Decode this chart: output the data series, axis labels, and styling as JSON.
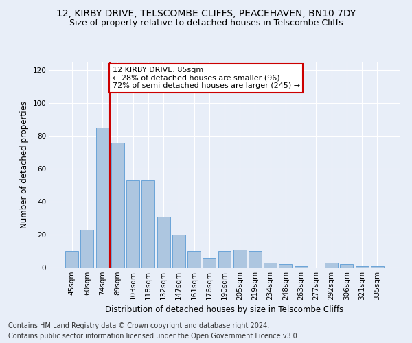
{
  "title": "12, KIRBY DRIVE, TELSCOMBE CLIFFS, PEACEHAVEN, BN10 7DY",
  "subtitle": "Size of property relative to detached houses in Telscombe Cliffs",
  "xlabel": "Distribution of detached houses by size in Telscombe Cliffs",
  "ylabel": "Number of detached properties",
  "categories": [
    "45sqm",
    "60sqm",
    "74sqm",
    "89sqm",
    "103sqm",
    "118sqm",
    "132sqm",
    "147sqm",
    "161sqm",
    "176sqm",
    "190sqm",
    "205sqm",
    "219sqm",
    "234sqm",
    "248sqm",
    "263sqm",
    "277sqm",
    "292sqm",
    "306sqm",
    "321sqm",
    "335sqm"
  ],
  "values": [
    10,
    23,
    85,
    76,
    53,
    53,
    31,
    20,
    10,
    6,
    10,
    11,
    10,
    3,
    2,
    1,
    0,
    3,
    2,
    1,
    1
  ],
  "bar_color": "#adc6e0",
  "bar_edge_color": "#5b9bd5",
  "vline_color": "#cc0000",
  "vline_index": 2.5,
  "annotation_text": "12 KIRBY DRIVE: 85sqm\n← 28% of detached houses are smaller (96)\n72% of semi-detached houses are larger (245) →",
  "annotation_box_facecolor": "#ffffff",
  "annotation_box_edgecolor": "#cc0000",
  "ylim": [
    0,
    125
  ],
  "yticks": [
    0,
    20,
    40,
    60,
    80,
    100,
    120
  ],
  "fig_facecolor": "#e8eef8",
  "ax_facecolor": "#e8eef8",
  "grid_color": "#ffffff",
  "title_fontsize": 10,
  "subtitle_fontsize": 9,
  "xlabel_fontsize": 8.5,
  "ylabel_fontsize": 8.5,
  "tick_fontsize": 7.5,
  "annotation_fontsize": 8,
  "footer_fontsize": 7,
  "footer_line1": "Contains HM Land Registry data © Crown copyright and database right 2024.",
  "footer_line2": "Contains public sector information licensed under the Open Government Licence v3.0."
}
